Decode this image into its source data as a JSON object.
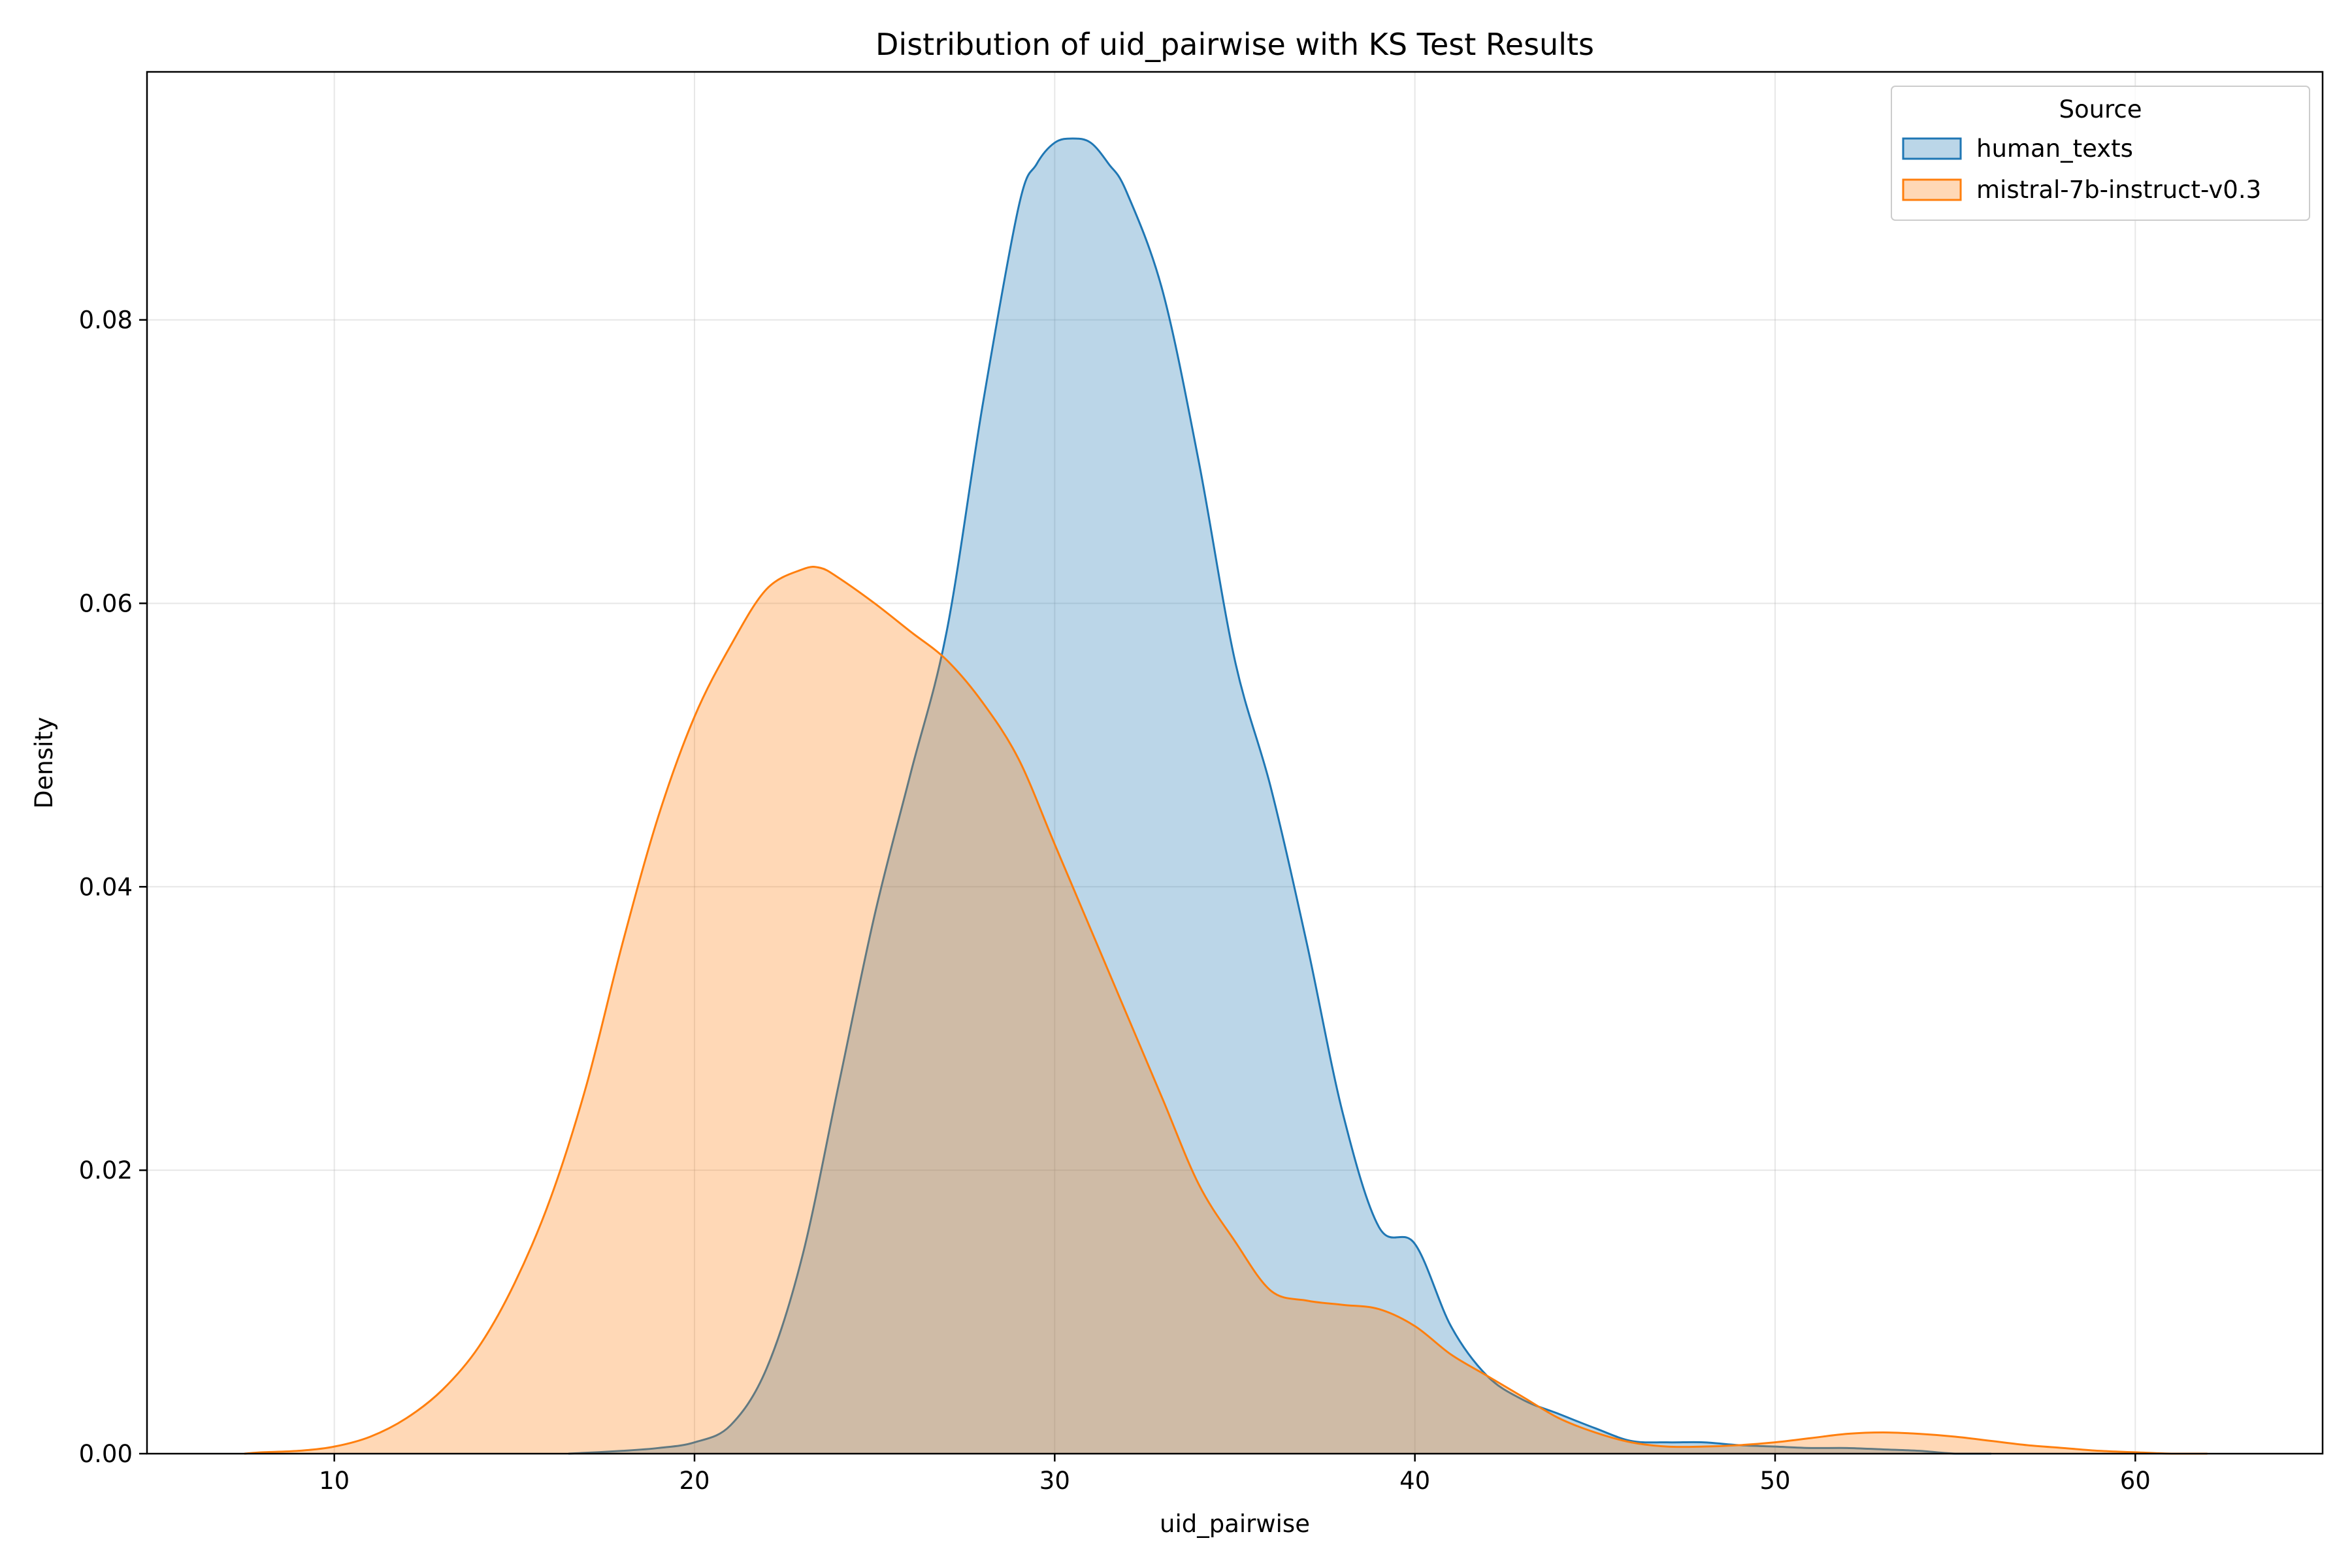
{
  "chart_data": {
    "type": "area",
    "title": "Distribution of uid_pairwise with KS Test Results",
    "xlabel": "uid_pairwise",
    "ylabel": "Density",
    "xlim": [
      4.8,
      65.2
    ],
    "ylim": [
      0,
      0.0975
    ],
    "x_ticks": [
      10,
      20,
      30,
      40,
      50,
      60
    ],
    "y_ticks": [
      0.0,
      0.02,
      0.04,
      0.06,
      0.08
    ],
    "x_tick_labels": [
      "10",
      "20",
      "30",
      "40",
      "50",
      "60"
    ],
    "y_tick_labels": [
      "0.00",
      "0.02",
      "0.04",
      "0.06",
      "0.08"
    ],
    "grid": true,
    "legend": {
      "title": "Source",
      "placement": "top-right"
    },
    "series": [
      {
        "name": "human_texts",
        "color": "#1f77b4",
        "fill": "#1f77b4",
        "x": [
          16.5,
          18,
          19,
          20,
          21,
          22,
          23,
          24,
          25,
          26,
          27,
          28,
          29,
          29.5,
          30,
          30.5,
          31,
          31.5,
          32,
          33,
          34,
          35,
          36,
          37,
          38,
          39,
          40,
          41,
          42,
          43,
          44,
          45,
          46,
          47,
          48,
          49,
          50,
          51,
          52,
          53,
          54,
          55,
          56
        ],
        "values": [
          0.0,
          0.0002,
          0.0004,
          0.0008,
          0.002,
          0.006,
          0.014,
          0.026,
          0.038,
          0.048,
          0.058,
          0.074,
          0.088,
          0.091,
          0.0925,
          0.0928,
          0.0925,
          0.091,
          0.089,
          0.082,
          0.07,
          0.056,
          0.047,
          0.036,
          0.024,
          0.016,
          0.0148,
          0.009,
          0.0055,
          0.0038,
          0.0028,
          0.0018,
          0.0009,
          0.0008,
          0.0008,
          0.0006,
          0.0005,
          0.0004,
          0.0004,
          0.0003,
          0.0002,
          0.0,
          0.0
        ]
      },
      {
        "name": "mistral-7b-instruct-v0.3",
        "color": "#ff7f0e",
        "fill": "#ff7f0e",
        "x": [
          7.5,
          8,
          9,
          10,
          11,
          12,
          13,
          14,
          15,
          16,
          17,
          18,
          19,
          20,
          21,
          22,
          23,
          23.5,
          24,
          25,
          26,
          27,
          28,
          29,
          30,
          31,
          32,
          33,
          34,
          35,
          36,
          37,
          38,
          39,
          40,
          41,
          42,
          43,
          44,
          45,
          46,
          47,
          48,
          49,
          50,
          51,
          52,
          53,
          54,
          55,
          56,
          57,
          58,
          59,
          60,
          61,
          62
        ],
        "values": [
          0.0,
          0.0001,
          0.0002,
          0.0005,
          0.0012,
          0.0025,
          0.0045,
          0.0075,
          0.012,
          0.018,
          0.026,
          0.036,
          0.045,
          0.052,
          0.057,
          0.061,
          0.0624,
          0.0625,
          0.0618,
          0.06,
          0.058,
          0.056,
          0.053,
          0.049,
          0.043,
          0.037,
          0.031,
          0.025,
          0.019,
          0.015,
          0.0115,
          0.0108,
          0.0105,
          0.0102,
          0.009,
          0.007,
          0.0055,
          0.004,
          0.0025,
          0.0015,
          0.0008,
          0.0005,
          0.0005,
          0.0006,
          0.0008,
          0.0011,
          0.0014,
          0.0015,
          0.0014,
          0.0012,
          0.0009,
          0.0006,
          0.0004,
          0.0002,
          0.0001,
          0.0,
          0.0
        ]
      }
    ]
  }
}
